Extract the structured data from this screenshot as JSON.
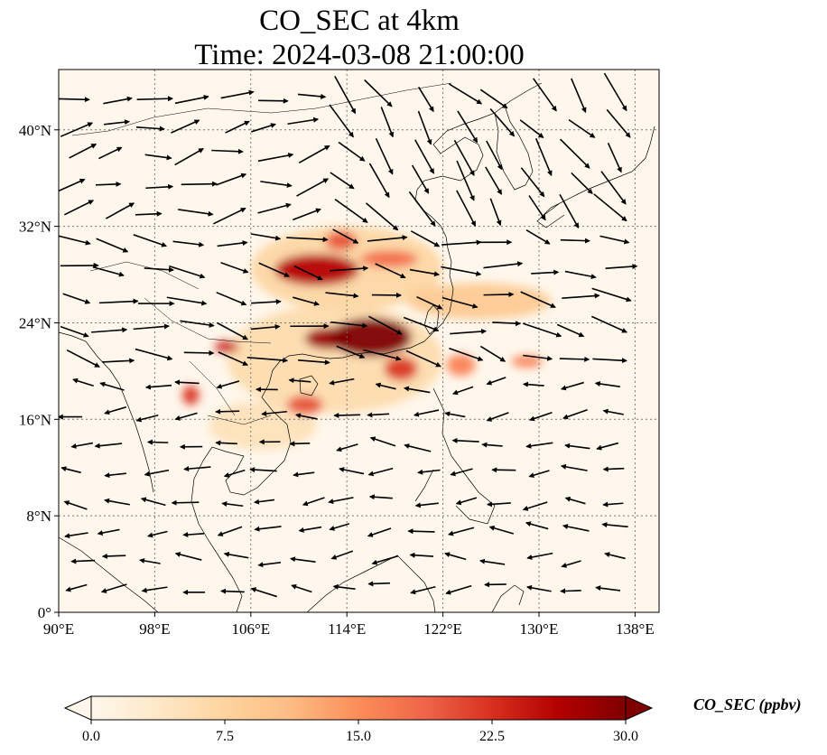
{
  "figure": {
    "title_line1": "CO_SEC at 4km",
    "title_line2": "Time: 2024-03-08 21:00:00"
  },
  "map": {
    "projection": "PlateCarree",
    "extent": {
      "lon_min": 90,
      "lon_max": 140,
      "lat_min": 0,
      "lat_max": 45
    },
    "lat_ticks": [
      {
        "value": 0,
        "label": "0°"
      },
      {
        "value": 8,
        "label": "8°N"
      },
      {
        "value": 16,
        "label": "16°N"
      },
      {
        "value": 24,
        "label": "24°N"
      },
      {
        "value": 32,
        "label": "32°N"
      },
      {
        "value": 40,
        "label": "40°N"
      }
    ],
    "lon_ticks": [
      {
        "value": 90,
        "label": "90°E"
      },
      {
        "value": 98,
        "label": "98°E"
      },
      {
        "value": 106,
        "label": "106°E"
      },
      {
        "value": 114,
        "label": "114°E"
      },
      {
        "value": 122,
        "label": "122°E"
      },
      {
        "value": 130,
        "label": "130°E"
      },
      {
        "value": 138,
        "label": "138°E"
      }
    ],
    "gridlines": "dotted",
    "field_name": "CO_SEC",
    "plumes": [
      {
        "lon": 116.0,
        "lat": 22.8,
        "rx": 3.4,
        "ry": 1.6,
        "value": 30
      },
      {
        "lon": 112.5,
        "lat": 22.7,
        "rx": 2.0,
        "ry": 0.9,
        "value": 28
      },
      {
        "lon": 111.5,
        "lat": 28.4,
        "rx": 3.5,
        "ry": 1.3,
        "value": 26
      },
      {
        "lon": 117.5,
        "lat": 29.3,
        "rx": 2.4,
        "ry": 0.7,
        "value": 18
      },
      {
        "lon": 113.5,
        "lat": 30.8,
        "rx": 1.3,
        "ry": 0.8,
        "value": 20
      },
      {
        "lon": 118.5,
        "lat": 20.2,
        "rx": 1.4,
        "ry": 1.0,
        "value": 22
      },
      {
        "lon": 123.5,
        "lat": 20.5,
        "rx": 1.2,
        "ry": 0.9,
        "value": 16
      },
      {
        "lon": 104.0,
        "lat": 22.0,
        "rx": 1.0,
        "ry": 0.5,
        "value": 24
      },
      {
        "lon": 101.0,
        "lat": 18.0,
        "rx": 0.7,
        "ry": 0.8,
        "value": 22
      },
      {
        "lon": 110.5,
        "lat": 17.2,
        "rx": 1.5,
        "ry": 0.8,
        "value": 20
      },
      {
        "lon": 129.0,
        "lat": 20.8,
        "rx": 1.3,
        "ry": 0.5,
        "value": 16
      },
      {
        "lon": 125.0,
        "lat": 25.8,
        "rx": 6.0,
        "ry": 1.5,
        "value": 9
      },
      {
        "lon": 114.0,
        "lat": 28.5,
        "rx": 8.0,
        "ry": 3.5,
        "value": 7
      },
      {
        "lon": 113.0,
        "lat": 21.0,
        "rx": 9.0,
        "ry": 4.5,
        "value": 6
      },
      {
        "lon": 107.0,
        "lat": 15.5,
        "rx": 4.5,
        "ry": 2.0,
        "value": 5
      }
    ],
    "wind_regions": [
      {
        "name": "northwest",
        "lon": [
          91,
          111
        ],
        "lat": [
          32,
          44
        ],
        "dir_deg": -10,
        "len": 1.0
      },
      {
        "name": "northeast",
        "lon": [
          112,
          139
        ],
        "lat": [
          33,
          44
        ],
        "dir_deg": 50,
        "len": 1.3
      },
      {
        "name": "central",
        "lon": [
          91,
          139
        ],
        "lat": [
          20,
          32
        ],
        "dir_deg": 12,
        "len": 1.2
      },
      {
        "name": "south",
        "lon": [
          91,
          139
        ],
        "lat": [
          1,
          19
        ],
        "dir_deg": 180,
        "len": 0.6
      }
    ]
  },
  "colorbar": {
    "label": "CO_SEC (ppbv)",
    "colormap": "OrRd",
    "min": 0.0,
    "max": 30.0,
    "extend": "both",
    "ticks": [
      "0.0",
      "7.5",
      "15.0",
      "22.5",
      "30.0"
    ],
    "color_stops": [
      "#fff7ec",
      "#fee8c8",
      "#fdd49e",
      "#fdbb84",
      "#fc8d59",
      "#ef6548",
      "#d7301f",
      "#b30000",
      "#7f0000"
    ]
  }
}
